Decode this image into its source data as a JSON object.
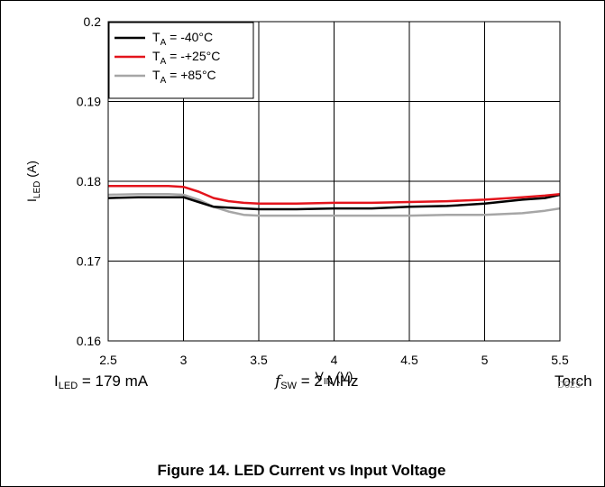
{
  "chart_data": {
    "type": "line",
    "xlabel": {
      "main": "V",
      "sub": "IN",
      "tail": " (V)"
    },
    "ylabel": {
      "main": "I",
      "sub": "LED",
      "tail": " (A)"
    },
    "xlim": [
      2.5,
      5.5
    ],
    "ylim": [
      0.16,
      0.2
    ],
    "x_ticks": [
      "2.5",
      "3",
      "3.5",
      "4",
      "4.5",
      "5",
      "5.5"
    ],
    "y_ticks": [
      "0.16",
      "0.17",
      "0.18",
      "0.19",
      "0.2"
    ],
    "grid": true,
    "legend_position": "top-left",
    "series": [
      {
        "name": {
          "main": "T",
          "sub": "A",
          "tail": " = -40°C"
        },
        "color": "#000000",
        "x": [
          2.5,
          2.7,
          2.9,
          3.0,
          3.1,
          3.2,
          3.3,
          3.4,
          3.5,
          3.75,
          4.0,
          4.25,
          4.5,
          4.75,
          5.0,
          5.25,
          5.4,
          5.5
        ],
        "y": [
          0.1779,
          0.178,
          0.178,
          0.178,
          0.1774,
          0.1768,
          0.1767,
          0.1766,
          0.1765,
          0.1765,
          0.1766,
          0.1766,
          0.1768,
          0.1769,
          0.1772,
          0.1777,
          0.1779,
          0.1783
        ]
      },
      {
        "name": {
          "main": "T",
          "sub": "A",
          "tail": " = -+25°C"
        },
        "color": "#e3141c",
        "x": [
          2.5,
          2.7,
          2.9,
          3.0,
          3.1,
          3.2,
          3.3,
          3.4,
          3.5,
          3.75,
          4.0,
          4.25,
          4.5,
          4.75,
          5.0,
          5.25,
          5.4,
          5.5
        ],
        "y": [
          0.1794,
          0.1794,
          0.1794,
          0.1793,
          0.1787,
          0.1779,
          0.1775,
          0.1773,
          0.1772,
          0.1772,
          0.1773,
          0.1773,
          0.1774,
          0.1775,
          0.1777,
          0.178,
          0.1782,
          0.1784
        ]
      },
      {
        "name": {
          "main": "T",
          "sub": "A",
          "tail": " = +85°C"
        },
        "color": "#a6a6a6",
        "x": [
          2.5,
          2.7,
          2.9,
          3.0,
          3.1,
          3.2,
          3.3,
          3.4,
          3.5,
          3.75,
          4.0,
          4.25,
          4.5,
          4.75,
          5.0,
          5.25,
          5.4,
          5.5
        ],
        "y": [
          0.1783,
          0.1784,
          0.1784,
          0.1783,
          0.1777,
          0.1768,
          0.1762,
          0.1758,
          0.1757,
          0.1757,
          0.1757,
          0.1757,
          0.1757,
          0.1758,
          0.1758,
          0.176,
          0.1763,
          0.1766
        ]
      }
    ]
  },
  "conditions": {
    "iled": {
      "main": "I",
      "sub": "LED",
      "tail": " = 179 mA"
    },
    "fsw": {
      "sym": "f",
      "sub": "SW",
      "tail": " = 2 MHz"
    },
    "mode": "Torch"
  },
  "figure_id": "D025",
  "caption": "Figure 14. LED Current vs Input Voltage"
}
